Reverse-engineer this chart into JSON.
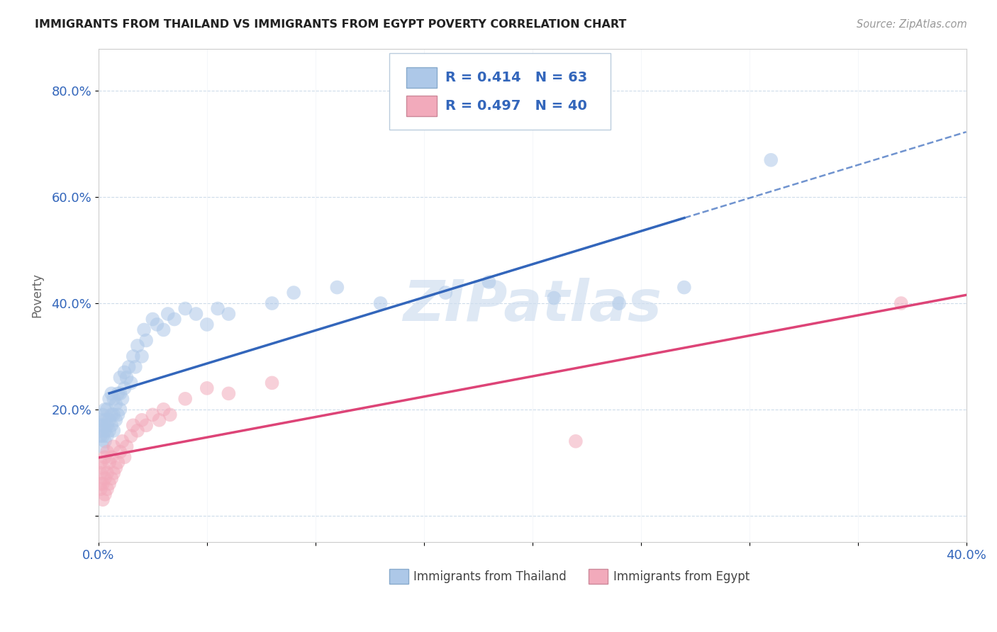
{
  "title": "IMMIGRANTS FROM THAILAND VS IMMIGRANTS FROM EGYPT POVERTY CORRELATION CHART",
  "source": "Source: ZipAtlas.com",
  "ylabel": "Poverty",
  "xlim": [
    0.0,
    0.4
  ],
  "ylim": [
    -0.05,
    0.88
  ],
  "thailand_color": "#adc8e8",
  "egypt_color": "#f2aabb",
  "thailand_R": 0.414,
  "thailand_N": 63,
  "egypt_R": 0.497,
  "egypt_N": 40,
  "trend_color_thailand": "#3366bb",
  "trend_color_egypt": "#dd4477",
  "legend_text_color": "#3366bb",
  "watermark_color": "#d0dff0",
  "thailand_x": [
    0.001,
    0.001,
    0.001,
    0.001,
    0.002,
    0.002,
    0.002,
    0.002,
    0.003,
    0.003,
    0.003,
    0.003,
    0.004,
    0.004,
    0.004,
    0.005,
    0.005,
    0.005,
    0.006,
    0.006,
    0.006,
    0.007,
    0.007,
    0.007,
    0.008,
    0.008,
    0.009,
    0.009,
    0.01,
    0.01,
    0.01,
    0.011,
    0.012,
    0.012,
    0.013,
    0.014,
    0.015,
    0.016,
    0.017,
    0.018,
    0.02,
    0.021,
    0.022,
    0.025,
    0.027,
    0.03,
    0.032,
    0.035,
    0.04,
    0.045,
    0.05,
    0.055,
    0.06,
    0.08,
    0.09,
    0.11,
    0.13,
    0.16,
    0.18,
    0.21,
    0.24,
    0.27,
    0.31
  ],
  "thailand_y": [
    0.15,
    0.16,
    0.17,
    0.18,
    0.13,
    0.15,
    0.17,
    0.19,
    0.14,
    0.16,
    0.18,
    0.2,
    0.15,
    0.17,
    0.2,
    0.16,
    0.18,
    0.22,
    0.17,
    0.19,
    0.23,
    0.16,
    0.19,
    0.22,
    0.18,
    0.21,
    0.19,
    0.23,
    0.2,
    0.23,
    0.26,
    0.22,
    0.24,
    0.27,
    0.26,
    0.28,
    0.25,
    0.3,
    0.28,
    0.32,
    0.3,
    0.35,
    0.33,
    0.37,
    0.36,
    0.35,
    0.38,
    0.37,
    0.39,
    0.38,
    0.36,
    0.39,
    0.38,
    0.4,
    0.42,
    0.43,
    0.4,
    0.42,
    0.44,
    0.41,
    0.4,
    0.43,
    0.67
  ],
  "egypt_x": [
    0.001,
    0.001,
    0.001,
    0.001,
    0.002,
    0.002,
    0.002,
    0.003,
    0.003,
    0.003,
    0.004,
    0.004,
    0.004,
    0.005,
    0.005,
    0.006,
    0.006,
    0.007,
    0.007,
    0.008,
    0.009,
    0.01,
    0.011,
    0.012,
    0.013,
    0.015,
    0.016,
    0.018,
    0.02,
    0.022,
    0.025,
    0.028,
    0.03,
    0.033,
    0.04,
    0.05,
    0.06,
    0.08,
    0.22,
    0.37
  ],
  "egypt_y": [
    0.05,
    0.06,
    0.08,
    0.1,
    0.03,
    0.06,
    0.09,
    0.04,
    0.07,
    0.11,
    0.05,
    0.08,
    0.12,
    0.06,
    0.1,
    0.07,
    0.11,
    0.08,
    0.13,
    0.09,
    0.1,
    0.12,
    0.14,
    0.11,
    0.13,
    0.15,
    0.17,
    0.16,
    0.18,
    0.17,
    0.19,
    0.18,
    0.2,
    0.19,
    0.22,
    0.24,
    0.23,
    0.25,
    0.14,
    0.4
  ]
}
